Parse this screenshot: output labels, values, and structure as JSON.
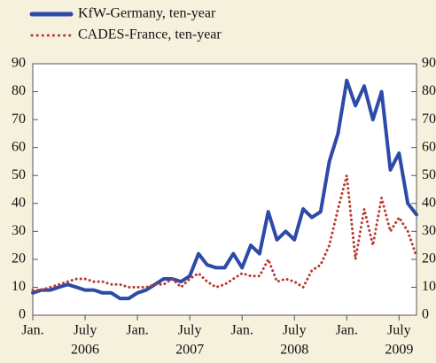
{
  "chart_data": {
    "type": "line",
    "x": [
      "2006-01",
      "2006-02",
      "2006-03",
      "2006-04",
      "2006-05",
      "2006-06",
      "2006-07",
      "2006-08",
      "2006-09",
      "2006-10",
      "2006-11",
      "2006-12",
      "2007-01",
      "2007-02",
      "2007-03",
      "2007-04",
      "2007-05",
      "2007-06",
      "2007-07",
      "2007-08",
      "2007-09",
      "2007-10",
      "2007-11",
      "2007-12",
      "2008-01",
      "2008-02",
      "2008-03",
      "2008-04",
      "2008-05",
      "2008-06",
      "2008-07",
      "2008-08",
      "2008-09",
      "2008-10",
      "2008-11",
      "2008-12",
      "2009-01",
      "2009-02",
      "2009-03",
      "2009-04",
      "2009-05",
      "2009-06",
      "2009-07",
      "2009-08",
      "2009-09"
    ],
    "series": [
      {
        "name": "KfW-Germany, ten-year",
        "color": "#2e4aa8",
        "style": "solid",
        "values": [
          8,
          9,
          9,
          10,
          11,
          10,
          9,
          9,
          8,
          8,
          6,
          6,
          8,
          9,
          11,
          13,
          13,
          12,
          14,
          22,
          18,
          17,
          17,
          22,
          17,
          25,
          22,
          37,
          27,
          30,
          27,
          38,
          35,
          37,
          55,
          65,
          84,
          75,
          82,
          70,
          80,
          52,
          58,
          40,
          36
        ]
      },
      {
        "name": "CADES-France, ten-year",
        "color": "#b83a2e",
        "style": "dotted",
        "values": [
          9,
          9,
          10,
          11,
          12,
          13,
          13,
          12,
          12,
          11,
          11,
          10,
          10,
          10,
          11,
          11,
          13,
          10,
          13,
          15,
          12,
          10,
          11,
          13,
          15,
          14,
          14,
          20,
          12,
          13,
          12,
          10,
          16,
          18,
          25,
          38,
          50,
          20,
          38,
          25,
          42,
          30,
          35,
          30,
          21
        ]
      }
    ],
    "xlim": [
      "2006-01",
      "2009-09"
    ],
    "xticks": [
      {
        "value": "2006-01",
        "label": "Jan."
      },
      {
        "value": "2006-07",
        "label": "July"
      },
      {
        "value": "2007-01",
        "label": "Jan."
      },
      {
        "value": "2007-07",
        "label": "July"
      },
      {
        "value": "2008-01",
        "label": "Jan."
      },
      {
        "value": "2008-07",
        "label": "July"
      },
      {
        "value": "2009-01",
        "label": "Jan."
      },
      {
        "value": "2009-07",
        "label": "July"
      }
    ],
    "years": [
      2006,
      2007,
      2008,
      2009
    ],
    "ylim": [
      0,
      90
    ],
    "yticks": [
      0,
      10,
      20,
      30,
      40,
      50,
      60,
      70,
      80,
      90
    ],
    "y2lim": [
      0,
      90
    ],
    "y2ticks": [
      0,
      10,
      20,
      30,
      40,
      50,
      60,
      70,
      80,
      90
    ],
    "legend": "top-left"
  }
}
